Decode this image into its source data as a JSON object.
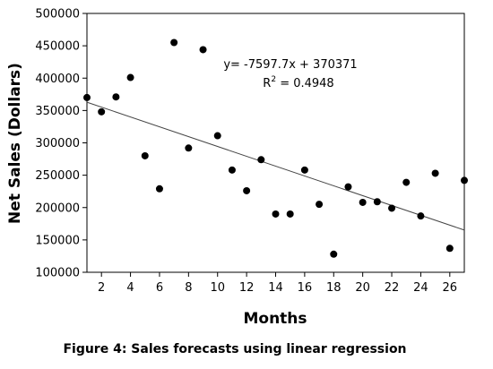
{
  "chart_data": {
    "type": "scatter",
    "xlabel": "Months",
    "ylabel": "Net Sales (Dollars)",
    "xlim": [
      1,
      27
    ],
    "ylim": [
      100000,
      500000
    ],
    "x_ticks": [
      2,
      4,
      6,
      8,
      10,
      12,
      14,
      16,
      18,
      20,
      22,
      24,
      26
    ],
    "y_ticks": [
      "100000",
      "150000",
      "200000",
      "250000",
      "300000",
      "350000",
      "400000",
      "450000",
      "500000"
    ],
    "grid": false,
    "points": [
      {
        "x": 1,
        "y": 370000
      },
      {
        "x": 2,
        "y": 348000
      },
      {
        "x": 3,
        "y": 371000
      },
      {
        "x": 4,
        "y": 401000
      },
      {
        "x": 5,
        "y": 280000
      },
      {
        "x": 6,
        "y": 229000
      },
      {
        "x": 7,
        "y": 455000
      },
      {
        "x": 8,
        "y": 292000
      },
      {
        "x": 9,
        "y": 444000
      },
      {
        "x": 10,
        "y": 311000
      },
      {
        "x": 11,
        "y": 258000
      },
      {
        "x": 12,
        "y": 226000
      },
      {
        "x": 13,
        "y": 274000
      },
      {
        "x": 14,
        "y": 190000
      },
      {
        "x": 15,
        "y": 190000
      },
      {
        "x": 16,
        "y": 258000
      },
      {
        "x": 17,
        "y": 205000
      },
      {
        "x": 18,
        "y": 128000
      },
      {
        "x": 19,
        "y": 232000
      },
      {
        "x": 20,
        "y": 208000
      },
      {
        "x": 21,
        "y": 209000
      },
      {
        "x": 22,
        "y": 199000
      },
      {
        "x": 23,
        "y": 239000
      },
      {
        "x": 24,
        "y": 187000
      },
      {
        "x": 25,
        "y": 253000
      },
      {
        "x": 26,
        "y": 137000
      },
      {
        "x": 27,
        "y": 242000
      }
    ],
    "trendline": {
      "slope": -7597.7,
      "intercept": 370371
    },
    "annotations": {
      "equation": "y= -7597.7x + 370371",
      "r_squared_prefix": "R",
      "r_squared_sup": "2",
      "r_squared_value": " = 0.4948"
    },
    "caption": "Figure 4: Sales forecasts using linear regression"
  }
}
